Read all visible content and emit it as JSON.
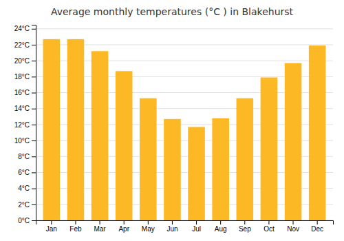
{
  "chart_data": {
    "type": "bar",
    "title": "Average monthly temperatures (°C ) in Blakehurst",
    "categories": [
      "Jan",
      "Feb",
      "Mar",
      "Apr",
      "May",
      "Jun",
      "Jul",
      "Aug",
      "Sep",
      "Oct",
      "Nov",
      "Dec"
    ],
    "values": [
      22.7,
      22.7,
      21.2,
      18.7,
      15.3,
      12.7,
      11.7,
      12.8,
      15.3,
      17.9,
      19.7,
      21.9
    ],
    "color": "#FDB825",
    "ylim": [
      0,
      24.5
    ],
    "yticks": [
      {
        "value": 0,
        "label": "0°C"
      },
      {
        "value": 2,
        "label": "2°C"
      },
      {
        "value": 4,
        "label": "4°C"
      },
      {
        "value": 6,
        "label": "6°C"
      },
      {
        "value": 8,
        "label": "8°C"
      },
      {
        "value": 10,
        "label": "10°C"
      },
      {
        "value": 12,
        "label": "12°C"
      },
      {
        "value": 14,
        "label": "14°C"
      },
      {
        "value": 16,
        "label": "16°C"
      },
      {
        "value": 18,
        "label": "18°C"
      },
      {
        "value": 20,
        "label": "20°C"
      },
      {
        "value": 22,
        "label": "22°C"
      },
      {
        "value": 24,
        "label": "24°C"
      }
    ],
    "grid": true
  }
}
